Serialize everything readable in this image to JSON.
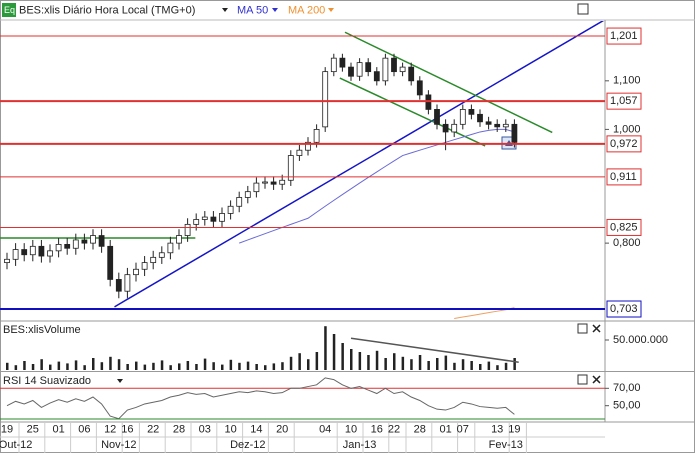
{
  "header": {
    "icon": "Eq",
    "symbol": "BES:xlis Diário Hora Local (TMG+0)",
    "ma50": "MA 50",
    "ma200": "MA 200"
  },
  "chart_data": [
    {
      "type": "candlestick",
      "log_scale": true,
      "up_color": "#ffffff",
      "down_color": "#222222",
      "categories": [
        "19",
        null,
        null,
        "25",
        null,
        null,
        "01",
        null,
        null,
        "06",
        null,
        null,
        "12",
        null,
        "16",
        null,
        null,
        "22",
        null,
        null,
        "28",
        null,
        null,
        "03",
        null,
        null,
        "10",
        null,
        null,
        "14",
        null,
        null,
        "20",
        null,
        null,
        null,
        null,
        "04",
        null,
        null,
        "10",
        null,
        null,
        "16",
        null,
        "22",
        null,
        null,
        "28",
        null,
        null,
        "01",
        null,
        "07",
        null,
        null,
        null,
        "13",
        null,
        "19"
      ],
      "months": [
        null,
        "Out-12",
        null,
        null,
        null,
        null,
        null,
        null,
        null,
        null,
        null,
        null,
        null,
        "Nov-12",
        null,
        null,
        null,
        null,
        null,
        null,
        null,
        null,
        null,
        null,
        null,
        null,
        null,
        null,
        "Dez-12",
        null,
        null,
        null,
        null,
        null,
        null,
        null,
        null,
        null,
        null,
        null,
        null,
        "Jan-13",
        null,
        null,
        null,
        null,
        null,
        null,
        null,
        null,
        null,
        null,
        null,
        null,
        null,
        null,
        null,
        null,
        "Fev-13",
        null
      ],
      "open": [
        0.77,
        0.775,
        0.79,
        0.782,
        0.795,
        0.78,
        0.788,
        0.798,
        0.792,
        0.805,
        0.8,
        0.812,
        0.795,
        0.745,
        0.728,
        0.752,
        0.76,
        0.77,
        0.778,
        0.785,
        0.8,
        0.812,
        0.83,
        0.838,
        0.842,
        0.835,
        0.848,
        0.86,
        0.875,
        0.885,
        0.9,
        0.902,
        0.898,
        0.905,
        0.95,
        0.96,
        0.975,
        1.005,
        1.12,
        1.15,
        1.13,
        1.11,
        1.14,
        1.12,
        1.1,
        1.15,
        1.12,
        1.13,
        1.1,
        1.07,
        1.04,
        1.01,
        0.995,
        1.01,
        1.04,
        1.03,
        1.015,
        1.01,
        1.005,
        1.01
      ],
      "high": [
        0.785,
        0.8,
        0.8,
        0.805,
        0.805,
        0.798,
        0.808,
        0.808,
        0.815,
        0.815,
        0.822,
        0.822,
        0.805,
        0.755,
        0.762,
        0.77,
        0.78,
        0.788,
        0.795,
        0.81,
        0.822,
        0.84,
        0.848,
        0.852,
        0.852,
        0.858,
        0.87,
        0.885,
        0.895,
        0.91,
        0.912,
        0.912,
        0.915,
        0.96,
        0.97,
        0.985,
        1.01,
        1.13,
        1.16,
        1.16,
        1.14,
        1.15,
        1.15,
        1.13,
        1.16,
        1.16,
        1.14,
        1.14,
        1.11,
        1.08,
        1.05,
        1.02,
        1.02,
        1.05,
        1.05,
        1.04,
        1.025,
        1.02,
        1.02,
        1.02
      ],
      "low": [
        0.76,
        0.765,
        0.772,
        0.772,
        0.77,
        0.77,
        0.778,
        0.782,
        0.782,
        0.79,
        0.79,
        0.785,
        0.735,
        0.718,
        0.718,
        0.742,
        0.75,
        0.76,
        0.768,
        0.775,
        0.79,
        0.802,
        0.82,
        0.828,
        0.825,
        0.825,
        0.838,
        0.85,
        0.865,
        0.875,
        0.89,
        0.888,
        0.888,
        0.895,
        0.94,
        0.95,
        0.965,
        0.995,
        1.11,
        1.12,
        1.1,
        1.1,
        1.11,
        1.09,
        1.09,
        1.11,
        1.11,
        1.09,
        1.06,
        1.03,
        1.0,
        0.96,
        0.985,
        1.0,
        1.02,
        1.005,
        1.0,
        0.995,
        0.995,
        0.965
      ],
      "close": [
        0.775,
        0.79,
        0.782,
        0.795,
        0.78,
        0.788,
        0.798,
        0.792,
        0.805,
        0.8,
        0.812,
        0.795,
        0.745,
        0.728,
        0.752,
        0.76,
        0.77,
        0.778,
        0.785,
        0.8,
        0.812,
        0.83,
        0.838,
        0.842,
        0.835,
        0.848,
        0.86,
        0.875,
        0.885,
        0.9,
        0.902,
        0.898,
        0.905,
        0.95,
        0.96,
        0.975,
        1.0,
        1.12,
        1.15,
        1.13,
        1.11,
        1.14,
        1.12,
        1.1,
        1.15,
        1.12,
        1.13,
        1.1,
        1.07,
        1.04,
        1.01,
        0.995,
        1.01,
        1.04,
        1.03,
        1.015,
        1.01,
        1.005,
        1.01,
        0.975
      ],
      "series": [
        {
          "name": "MA 50",
          "color": "#6a6ad8",
          "values": [
            null,
            null,
            null,
            null,
            null,
            null,
            null,
            null,
            null,
            null,
            null,
            null,
            null,
            null,
            null,
            null,
            null,
            null,
            null,
            null,
            null,
            null,
            null,
            null,
            null,
            null,
            null,
            0.8,
            0.805,
            0.81,
            0.815,
            0.82,
            0.825,
            0.83,
            0.835,
            0.84,
            0.85,
            0.86,
            0.87,
            0.88,
            0.89,
            0.9,
            0.91,
            0.92,
            0.93,
            0.94,
            0.95,
            0.955,
            0.96,
            0.965,
            0.97,
            0.975,
            0.98,
            0.985,
            0.99,
            0.995,
            0.998,
            1.0,
            1.0,
            0.995
          ]
        },
        {
          "name": "MA 200",
          "color": "#f0a060",
          "values": [
            null,
            null,
            null,
            null,
            null,
            null,
            null,
            null,
            null,
            null,
            null,
            null,
            null,
            null,
            null,
            null,
            null,
            null,
            null,
            null,
            null,
            null,
            null,
            null,
            null,
            null,
            null,
            null,
            null,
            null,
            null,
            null,
            null,
            null,
            null,
            null,
            null,
            null,
            null,
            null,
            null,
            null,
            null,
            null,
            null,
            null,
            null,
            null,
            null,
            null,
            null,
            null,
            0.69,
            0.692,
            0.694,
            0.696,
            0.698,
            0.7,
            0.702,
            0.705
          ]
        }
      ],
      "ylim": [
        0.688,
        1.237
      ],
      "yticks": [
        {
          "value": 1.1,
          "label": "1,100"
        },
        {
          "value": 1.0,
          "label": "1,000"
        },
        {
          "value": 0.8,
          "label": "0,800"
        }
      ],
      "levels": [
        {
          "value": 1.201,
          "label": "1,201",
          "color": "#e03030",
          "heavy": false
        },
        {
          "value": 1.057,
          "label": "1,057",
          "color": "#e03030",
          "heavy": true
        },
        {
          "value": 0.972,
          "label": "0,972",
          "color": "#e03030",
          "heavy": true
        },
        {
          "value": 0.911,
          "label": "0,911",
          "color": "#e03030",
          "heavy": false
        },
        {
          "value": 0.825,
          "label": "0,825",
          "color": "#e03030",
          "heavy": false
        },
        {
          "value": 0.703,
          "label": "0,703",
          "color": "#1010c0",
          "heavy": true
        }
      ],
      "trendlines": [
        {
          "color": "#1414c8",
          "x": [
            12.5,
            69.5
          ],
          "y": [
            0.706,
            1.24
          ]
        },
        {
          "color": "#2a8a2a",
          "x": [
            39.3,
            63.4
          ],
          "y": [
            1.21,
            0.994
          ]
        },
        {
          "color": "#2a8a2a",
          "x": [
            38.7,
            55.6
          ],
          "y": [
            1.106,
            0.968
          ]
        },
        {
          "color": "#2a8a2a",
          "x": [
            -1,
            21.9
          ],
          "y": [
            0.808,
            0.808
          ]
        }
      ]
    },
    {
      "type": "bar",
      "title": "BES:xlisVolume",
      "color": "#222222",
      "values": [
        12000000,
        8000000,
        15000000,
        10000000,
        18000000,
        9000000,
        14000000,
        11000000,
        16000000,
        8000000,
        20000000,
        13000000,
        22000000,
        18000000,
        10000000,
        14000000,
        9000000,
        12000000,
        16000000,
        8000000,
        11000000,
        15000000,
        10000000,
        19000000,
        13000000,
        9000000,
        17000000,
        12000000,
        14000000,
        10000000,
        8000000,
        11000000,
        13000000,
        22000000,
        28000000,
        18000000,
        30000000,
        73000000,
        60000000,
        45000000,
        35000000,
        30000000,
        25000000,
        32000000,
        20000000,
        28000000,
        22000000,
        18000000,
        25000000,
        15000000,
        20000000,
        24000000,
        12000000,
        18000000,
        15000000,
        10000000,
        14000000,
        8000000,
        12000000,
        20000000
      ],
      "ylim": [
        0,
        80000000
      ],
      "yticks": [
        {
          "value": 50000000,
          "label": "50.000.000"
        }
      ],
      "trendlines": [
        {
          "color": "#555555",
          "x": [
            40,
            59.5
          ],
          "y": [
            53000000,
            13000000
          ]
        }
      ]
    },
    {
      "type": "line",
      "title": "RSI 14 Suavizado",
      "color": "#666666",
      "values": [
        50,
        55,
        52,
        56,
        48,
        53,
        57,
        54,
        58,
        55,
        60,
        52,
        38,
        35,
        45,
        48,
        52,
        54,
        56,
        60,
        62,
        65,
        63,
        64,
        60,
        62,
        64,
        66,
        65,
        67,
        66,
        64,
        65,
        70,
        70,
        72,
        74,
        82,
        80,
        74,
        70,
        72,
        68,
        64,
        70,
        64,
        66,
        60,
        56,
        50,
        46,
        45,
        48,
        54,
        52,
        49,
        48,
        47,
        48,
        40
      ],
      "ylim": [
        32.4,
        87.6
      ],
      "yticks": [
        {
          "value": 70,
          "label": "70,00"
        },
        {
          "value": 50,
          "label": "50,00"
        }
      ],
      "levels": [
        {
          "value": 70,
          "color": "#e03030"
        }
      ]
    }
  ]
}
